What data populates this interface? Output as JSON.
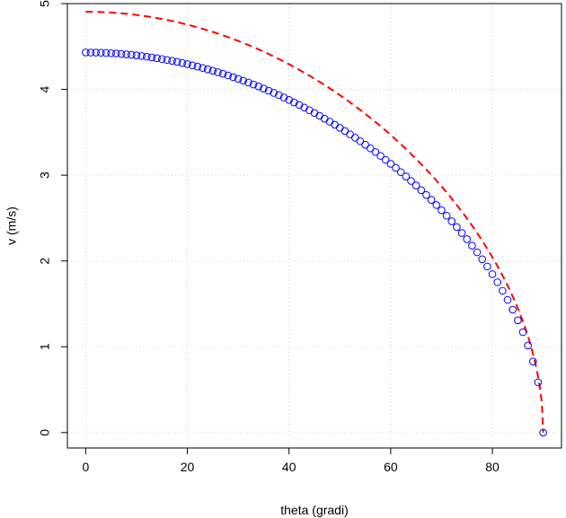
{
  "chart_data": {
    "type": "scatter",
    "xlabel": "theta (gradi)",
    "ylabel": "v (m/s)",
    "xlim": [
      -3.6,
      93.6
    ],
    "ylim": [
      -0.18,
      5.0
    ],
    "grid": true,
    "x_ticks": [
      "0",
      "20",
      "40",
      "60",
      "80"
    ],
    "y_ticks": [
      "0",
      "1",
      "2",
      "3",
      "4",
      "5"
    ],
    "series": [
      {
        "style": "points",
        "marker": "open-circle",
        "color": "#0000ff",
        "formula": "v = 4.43 * sqrt(cos(theta))",
        "x_start": 0,
        "x_end": 90,
        "x_step": 1
      },
      {
        "style": "dashed-line",
        "color": "#ff0000",
        "formula": "v = 4.905 * sqrt(cos(theta))",
        "x_start": 0,
        "x_end": 90
      }
    ]
  }
}
